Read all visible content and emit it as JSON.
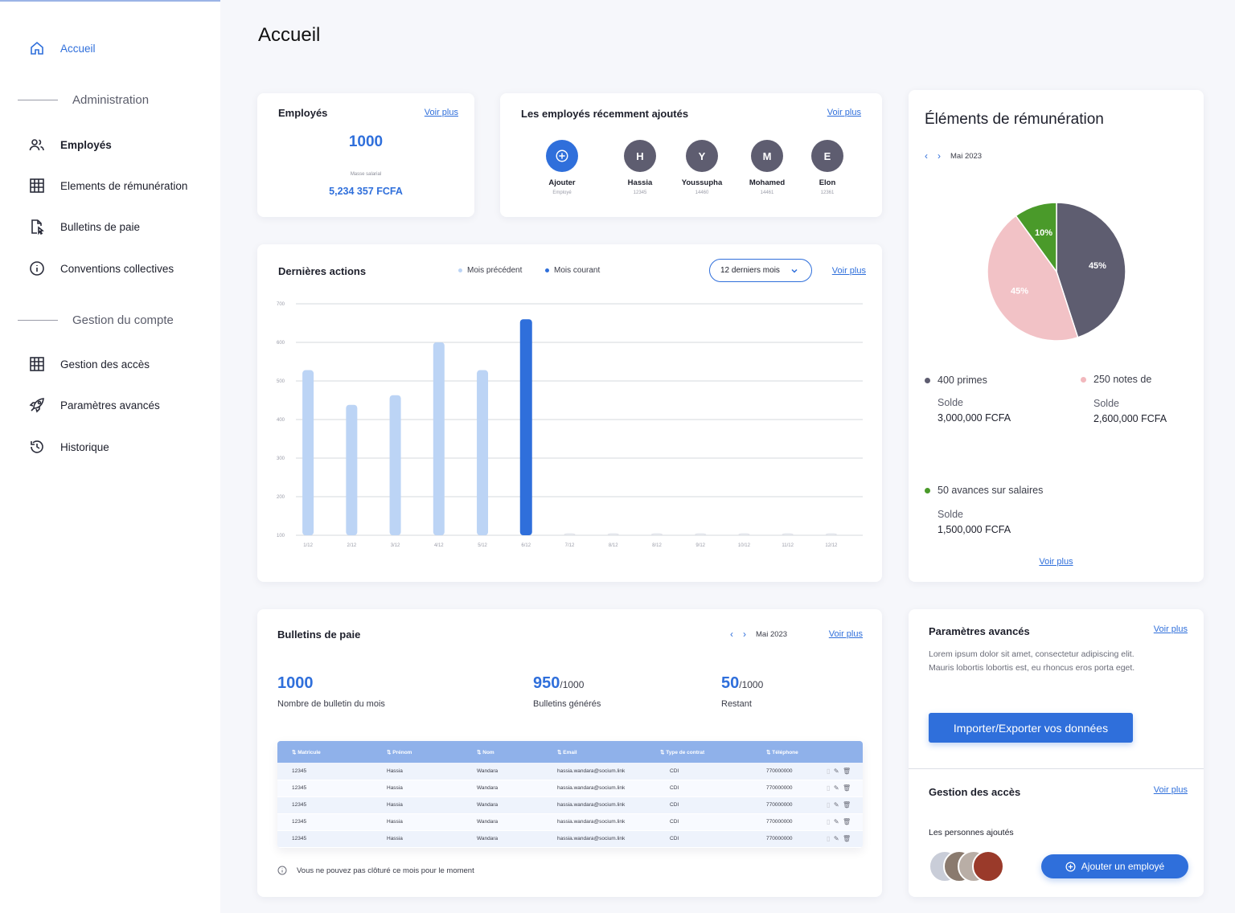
{
  "page": {
    "title": "Accueil"
  },
  "sidebar": {
    "home": "Accueil",
    "section_admin": "Administration",
    "admin_items": [
      "Employés",
      "Elements de rémunération",
      "Bulletins de paie",
      "Conventions collectives"
    ],
    "section_account": "Gestion du compte",
    "account_items": [
      "Gestion des accès",
      "Paramètres avancés",
      "Historique"
    ]
  },
  "employees_card": {
    "title": "Employés",
    "link": "Voir plus",
    "count": "1000",
    "masse_label": "Masse salarial",
    "masse_value": "5,234 357 FCFA"
  },
  "recent_card": {
    "title": "Les employés récemment ajoutés",
    "link": "Voir plus",
    "add_label": "Ajouter",
    "add_sub": "Employé",
    "employees": [
      {
        "initial": "H",
        "name": "Hassia",
        "id": "12345"
      },
      {
        "initial": "Y",
        "name": "Youssupha",
        "id": "14460"
      },
      {
        "initial": "M",
        "name": "Mohamed",
        "id": "14461"
      },
      {
        "initial": "E",
        "name": "Elon",
        "id": "12361"
      }
    ]
  },
  "actions_card": {
    "title": "Dernières actions",
    "legend_prev": "Mois précédent",
    "legend_curr": "Mois courant",
    "filter": "12 derniers mois",
    "link": "Voir plus"
  },
  "chart_data": {
    "type": "bar",
    "categories": [
      "1/12",
      "2/12",
      "3/12",
      "4/12",
      "5/12",
      "6/12",
      "7/12",
      "8/12",
      "8/12",
      "9/12",
      "10/12",
      "11/12",
      "12/12"
    ],
    "series": [
      {
        "name": "Mois précédent",
        "values": [
          528,
          438,
          463,
          600,
          528,
          null,
          105,
          105,
          105,
          105,
          105,
          105,
          105
        ]
      },
      {
        "name": "Mois courant",
        "values": [
          null,
          null,
          null,
          null,
          null,
          660,
          null,
          null,
          null,
          null,
          null,
          null,
          null
        ]
      }
    ],
    "yticks": [
      "100",
      "200",
      "300",
      "400",
      "500",
      "600",
      "700"
    ],
    "ylim": [
      100,
      700
    ],
    "colors": {
      "prev": "#bcd4f5",
      "curr": "#2f6fdb",
      "empty": "#e4e6ec"
    },
    "grid": true
  },
  "remuneration_card": {
    "title": "Éléments de rémunération",
    "month": "Mai 2023",
    "link": "Voir plus",
    "pie": [
      {
        "label": "45%",
        "value": 45,
        "color": "#5e5d70"
      },
      {
        "label": "45%",
        "value": 45,
        "color": "#f2c2c6"
      },
      {
        "label": "10%",
        "value": 10,
        "color": "#4a9a2a"
      }
    ],
    "items": [
      {
        "label": "400 primes",
        "color": "#5e5d70",
        "solde_label": "Solde",
        "solde": "3,000,000 FCFA"
      },
      {
        "label": "250 notes de",
        "color": "#f2b8bd",
        "solde_label": "Solde",
        "solde": "2,600,000 FCFA"
      },
      {
        "label": "50 avances sur salaires",
        "color": "#4a9a2a",
        "solde_label": "Solde",
        "solde": "1,500,000 FCFA"
      }
    ]
  },
  "payslips_card": {
    "title": "Bulletins de paie",
    "month": "Mai 2023",
    "link": "Voir plus",
    "stats": [
      {
        "value": "1000",
        "suffix": "",
        "label": "Nombre de bulletin du mois"
      },
      {
        "value": "950",
        "suffix": "/1000",
        "label": "Bulletins générés"
      },
      {
        "value": "50",
        "suffix": "/1000",
        "label": "Restant"
      }
    ],
    "columns": [
      "Matricule",
      "Prénom",
      "Nom",
      "Email",
      "Type de contrat",
      "Téléphone"
    ],
    "rows": [
      [
        "12345",
        "Hassia",
        "Wandara",
        "hassia.wandara@socium.link",
        "CDI",
        "770000000"
      ],
      [
        "12345",
        "Hassia",
        "Wandara",
        "hassia.wandara@socium.link",
        "CDI",
        "770000000"
      ],
      [
        "12345",
        "Hassia",
        "Wandara",
        "hassia.wandara@socium.link",
        "CDI",
        "770000000"
      ],
      [
        "12345",
        "Hassia",
        "Wandara",
        "hassia.wandara@socium.link",
        "CDI",
        "770000000"
      ],
      [
        "12345",
        "Hassia",
        "Wandara",
        "hassia.wandara@socium.link",
        "CDI",
        "770000000"
      ]
    ],
    "notice": "Vous ne pouvez pas clôturé ce mois pour le moment"
  },
  "advanced_card": {
    "title": "Paramètres avancés",
    "link": "Voir plus",
    "text": "Lorem ipsum dolor sit amet, consectetur adipiscing elit. Mauris lobortis lobortis est, eu rhoncus eros porta eget.",
    "button": "Importer/Exporter vos données"
  },
  "access_card": {
    "title": "Gestion des accès",
    "link": "Voir plus",
    "subtitle": "Les personnes ajoutés",
    "button": "Ajouter un employé"
  }
}
